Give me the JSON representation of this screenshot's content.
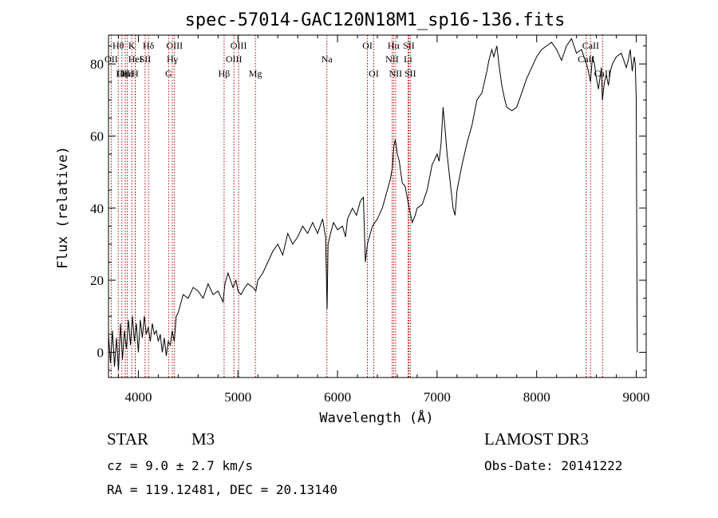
{
  "chart_data": {
    "type": "line",
    "title": "spec-57014-GAC120N18M1_sp16-136.fits",
    "xlabel": "Wavelength (Å)",
    "ylabel": "Flux (relative)",
    "xlim": [
      3700,
      9100
    ],
    "ylim": [
      -7,
      88
    ],
    "x_ticks": [
      4000,
      5000,
      6000,
      7000,
      8000,
      9000
    ],
    "y_ticks": [
      0,
      20,
      40,
      60,
      80
    ],
    "series": [
      {
        "name": "flux",
        "color": "#000000",
        "x": [
          3700,
          3720,
          3740,
          3760,
          3780,
          3800,
          3820,
          3840,
          3860,
          3880,
          3900,
          3920,
          3940,
          3960,
          3980,
          4000,
          4020,
          4040,
          4060,
          4080,
          4100,
          4120,
          4140,
          4160,
          4180,
          4200,
          4220,
          4240,
          4260,
          4280,
          4300,
          4320,
          4340,
          4360,
          4380,
          4400,
          4450,
          4500,
          4550,
          4600,
          4650,
          4700,
          4750,
          4800,
          4850,
          4870,
          4900,
          4950,
          4980,
          5000,
          5030,
          5070,
          5100,
          5150,
          5180,
          5200,
          5250,
          5300,
          5350,
          5400,
          5450,
          5500,
          5550,
          5600,
          5650,
          5700,
          5750,
          5800,
          5850,
          5880,
          5895,
          5905,
          5930,
          5960,
          6000,
          6050,
          6080,
          6100,
          6150,
          6190,
          6230,
          6260,
          6280,
          6300,
          6350,
          6400,
          6450,
          6500,
          6530,
          6550,
          6565,
          6580,
          6600,
          6620,
          6650,
          6680,
          6700,
          6720,
          6750,
          6780,
          6800,
          6850,
          6900,
          6950,
          7000,
          7020,
          7040,
          7060,
          7080,
          7100,
          7120,
          7140,
          7160,
          7180,
          7200,
          7250,
          7300,
          7350,
          7400,
          7450,
          7500,
          7520,
          7550,
          7570,
          7600,
          7620,
          7650,
          7680,
          7700,
          7750,
          7800,
          7850,
          7900,
          7950,
          8000,
          8050,
          8100,
          8150,
          8200,
          8250,
          8300,
          8350,
          8400,
          8450,
          8500,
          8520,
          8540,
          8560,
          8580,
          8600,
          8620,
          8640,
          8650,
          8660,
          8680,
          8700,
          8720,
          8740,
          8760,
          8800,
          8850,
          8900,
          8920,
          8940,
          8960,
          8980,
          8990,
          9000,
          9005,
          9010
        ],
        "values": [
          5,
          -3,
          6,
          -4,
          4,
          -5,
          8,
          -2,
          6,
          1,
          9,
          2,
          10,
          3,
          8,
          0,
          9,
          4,
          10,
          5,
          7,
          3,
          8,
          5,
          6,
          3,
          5,
          0,
          4,
          -1,
          3,
          2,
          6,
          3,
          10,
          11,
          16,
          15,
          18,
          17,
          15,
          19,
          16,
          17,
          14,
          19,
          22,
          18,
          20,
          17,
          16,
          18,
          19,
          18,
          17,
          20,
          22,
          25,
          28,
          30,
          27,
          33,
          30,
          32,
          35,
          33,
          36,
          33,
          37,
          32,
          12,
          30,
          33,
          36,
          34,
          35,
          32,
          37,
          40,
          38,
          42,
          43,
          25,
          30,
          35,
          37,
          40,
          45,
          48,
          51,
          57,
          59,
          55,
          53,
          47,
          46,
          43,
          40,
          36,
          38,
          40,
          41,
          45,
          52,
          55,
          53,
          58,
          68,
          62,
          55,
          50,
          45,
          40,
          38,
          45,
          52,
          58,
          63,
          70,
          72,
          78,
          81,
          84,
          82,
          85,
          80,
          74,
          70,
          68,
          67,
          68,
          72,
          76,
          79,
          82,
          84,
          85,
          86,
          84,
          81,
          85,
          87,
          83,
          84,
          80,
          78,
          75,
          82,
          80,
          76,
          73,
          77,
          79,
          70,
          75,
          77,
          74,
          78,
          80,
          82,
          83,
          79,
          81,
          84,
          78,
          82,
          80,
          70,
          35,
          0
        ]
      }
    ],
    "spectral_lines": [
      {
        "label": "Hθ",
        "wl": 3798,
        "row": 1
      },
      {
        "label": "OII",
        "wl": 3727,
        "row": 2
      },
      {
        "label": "OIII",
        "wl": 3869,
        "row": 3
      },
      {
        "label": "Hε",
        "wl": 3889,
        "row": 3
      },
      {
        "label": "K",
        "wl": 3934,
        "row": 1
      },
      {
        "label": "HeI",
        "wl": 3970,
        "row": 2
      },
      {
        "label": "Hη",
        "wl": 3835,
        "row": 3
      },
      {
        "label": "H",
        "wl": 3968,
        "row": 3
      },
      {
        "label": "Hδ",
        "wl": 4102,
        "row": 1
      },
      {
        "label": "SII",
        "wl": 4068,
        "row": 2
      },
      {
        "label": "OIII",
        "wl": 4363,
        "row": 1
      },
      {
        "label": "Hγ",
        "wl": 4341,
        "row": 2
      },
      {
        "label": "G",
        "wl": 4304,
        "row": 3
      },
      {
        "label": "Hβ",
        "wl": 4861,
        "row": 3
      },
      {
        "label": "OIII",
        "wl": 5007,
        "row": 1
      },
      {
        "label": "OIII",
        "wl": 4959,
        "row": 2
      },
      {
        "label": "Mg",
        "wl": 5175,
        "row": 3
      },
      {
        "label": "Na",
        "wl": 5893,
        "row": 2
      },
      {
        "label": "OI",
        "wl": 6300,
        "row": 1
      },
      {
        "label": "OI",
        "wl": 6364,
        "row": 3
      },
      {
        "label": "Hα",
        "wl": 6563,
        "row": 1
      },
      {
        "label": "SII",
        "wl": 6716,
        "row": 1
      },
      {
        "label": "NII",
        "wl": 6548,
        "row": 2
      },
      {
        "label": "Li",
        "wl": 6708,
        "row": 2
      },
      {
        "label": "NII",
        "wl": 6583,
        "row": 3
      },
      {
        "label": "SII",
        "wl": 6731,
        "row": 3
      },
      {
        "label": "CaII",
        "wl": 8542,
        "row": 1
      },
      {
        "label": "CaII",
        "wl": 8498,
        "row": 2
      },
      {
        "label": "CaII",
        "wl": 8662,
        "row": 3
      }
    ]
  },
  "info": {
    "object_type": "STAR",
    "subclass": "M3",
    "survey": "LAMOST DR3",
    "cz": "cz = 9.0 ± 2.7 km/s",
    "obs_date": "Obs-Date: 20141222",
    "radec": "RA = 119.12481, DEC =  20.13140"
  },
  "colors": {
    "spectrum": "#000000",
    "line_marker": "#b00000",
    "axes": "#000000"
  }
}
